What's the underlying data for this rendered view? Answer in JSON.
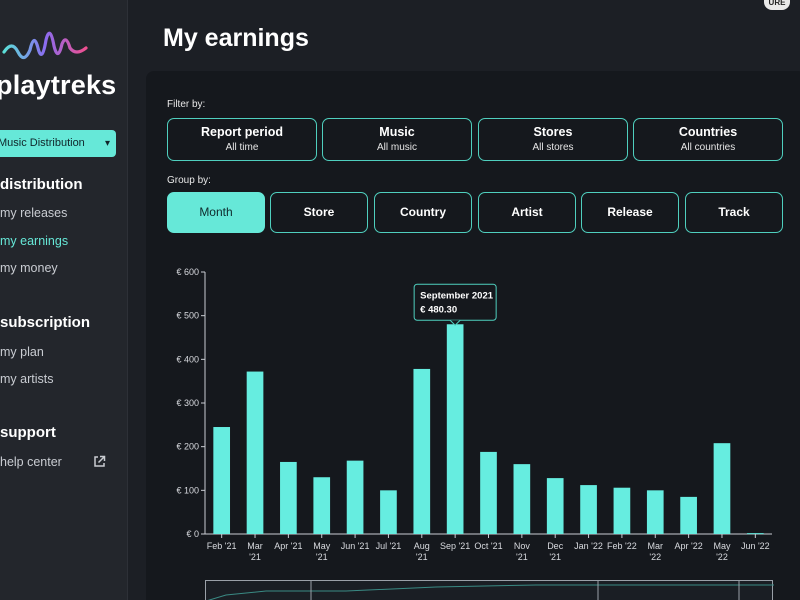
{
  "sidebar": {
    "logo_text": "playtreks",
    "distribution_select": "Music Distribution",
    "sections": [
      {
        "title": "distribution",
        "items": [
          "my releases",
          "my earnings",
          "my money"
        ]
      },
      {
        "title": "subscription",
        "items": [
          "my plan",
          "my artists"
        ]
      },
      {
        "title": "support",
        "items": [
          "help center"
        ]
      }
    ]
  },
  "header": {
    "title": "My earnings",
    "badge": "URE"
  },
  "filters": {
    "label": "Filter by:",
    "buttons": [
      {
        "title": "Report period",
        "value": "All time"
      },
      {
        "title": "Music",
        "value": "All music"
      },
      {
        "title": "Stores",
        "value": "All stores"
      },
      {
        "title": "Countries",
        "value": "All countries"
      }
    ]
  },
  "group": {
    "label": "Group by:",
    "buttons": [
      "Month",
      "Store",
      "Country",
      "Artist",
      "Release",
      "Track"
    ],
    "active": "Month"
  },
  "colors": {
    "accent": "#66e8d8",
    "bar": "#66ede0",
    "panel": "#15181d",
    "sidebar": "#23262c"
  },
  "chart_data": {
    "type": "bar",
    "categories": [
      "Feb '21",
      "Mar '21",
      "Apr '21",
      "May '21",
      "Jun '21",
      "Jul '21",
      "Aug '21",
      "Sep '21",
      "Oct '21",
      "Nov '21",
      "Dec '21",
      "Jan '22",
      "Feb '22",
      "Mar '22",
      "Apr '22",
      "May '22",
      "Jun '22"
    ],
    "values": [
      245,
      372,
      165,
      130,
      168,
      100,
      378,
      480.3,
      188,
      160,
      128,
      112,
      106,
      100,
      85,
      208,
      2
    ],
    "ylim": [
      0,
      600
    ],
    "yticks": [
      "€ 0",
      "€ 100",
      "€ 200",
      "€ 300",
      "€ 400",
      "€ 500",
      "€ 600"
    ],
    "xtick_labels": [
      [
        "Feb '21"
      ],
      [
        "Mar",
        "'21"
      ],
      [
        "Apr '21"
      ],
      [
        "May",
        "'21"
      ],
      [
        "Jun '21"
      ],
      [
        "Jul '21"
      ],
      [
        "Aug",
        "'21"
      ],
      [
        "Sep '21"
      ],
      [
        "Oct '21"
      ],
      [
        "Nov",
        "'21"
      ],
      [
        "Dec",
        "'21"
      ],
      [
        "Jan '22"
      ],
      [
        "Feb '22"
      ],
      [
        "Mar",
        "'22"
      ],
      [
        "Apr '22"
      ],
      [
        "May",
        "'22"
      ],
      [
        "Jun '22"
      ]
    ],
    "tooltip": {
      "title": "September 2021",
      "value": "€ 480.30",
      "index": 7
    },
    "grid": false,
    "legend": "none"
  }
}
